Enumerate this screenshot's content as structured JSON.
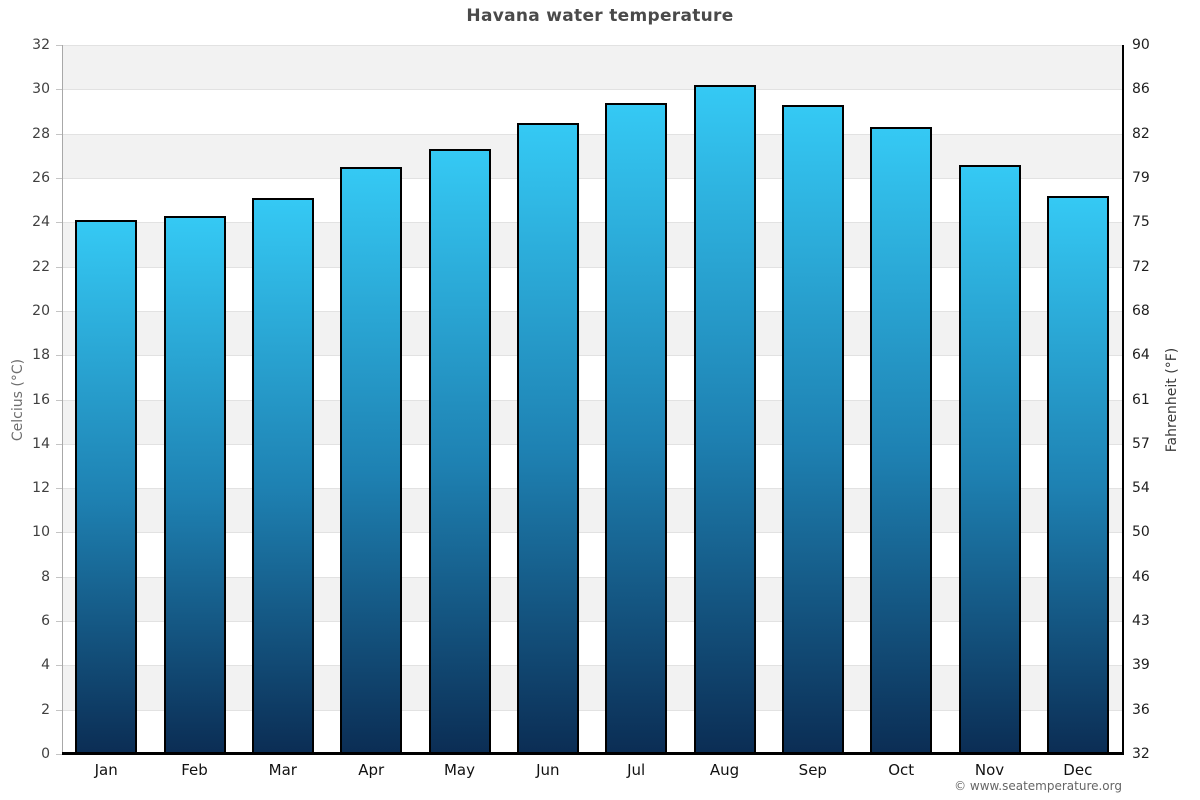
{
  "title": "Havana water temperature",
  "watermark": "© www.seatemperature.org",
  "chart_data": {
    "type": "bar",
    "title": "Havana water temperature",
    "categories": [
      "Jan",
      "Feb",
      "Mar",
      "Apr",
      "May",
      "Jun",
      "Jul",
      "Aug",
      "Sep",
      "Oct",
      "Nov",
      "Dec"
    ],
    "values": [
      24.1,
      24.3,
      25.1,
      26.5,
      27.3,
      28.5,
      29.4,
      30.2,
      29.3,
      28.3,
      26.6,
      25.2
    ],
    "ylabel_left": "Celcius (°C)",
    "ylabel_right": "Fahrenheit (°F)",
    "ylim": [
      0,
      32
    ],
    "ytick_step": 2,
    "left_tick_labels": [
      "32",
      "30",
      "28",
      "26",
      "24",
      "22",
      "20",
      "18",
      "16",
      "14",
      "12",
      "10",
      "8",
      "6",
      "4",
      "2",
      "0"
    ],
    "right_tick_labels": [
      "90",
      "86",
      "82",
      "79",
      "75",
      "72",
      "68",
      "64",
      "61",
      "57",
      "54",
      "50",
      "46",
      "43",
      "39",
      "36",
      "32"
    ],
    "grid": true,
    "legend": false,
    "colors": {
      "bar_top": "#35c9f4",
      "bar_mid": "#1e81b2",
      "bar_bottom": "#0b2d54",
      "bar_border": "#000000",
      "band_gray": "#f2f2f2",
      "band_white": "#ffffff",
      "gridline": "#e2e2e2",
      "title_text": "#4a4a4a"
    }
  }
}
